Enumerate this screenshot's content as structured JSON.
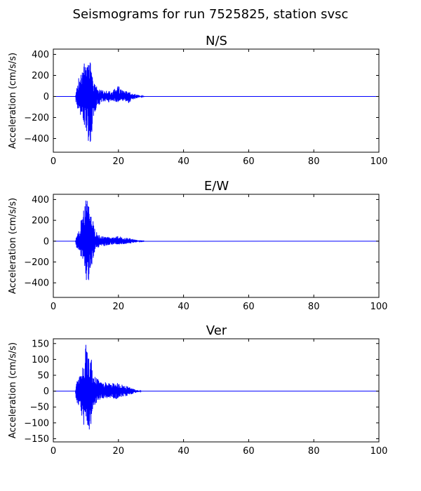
{
  "title": "Seismograms for run 7525825, station svsc",
  "colors": {
    "trace": "#0000ff",
    "axes": "#000000",
    "background": "#ffffff"
  },
  "chart_data": [
    {
      "type": "line",
      "title": "N/S",
      "xlabel": "",
      "ylabel": "Acceleration (cm/s/s)",
      "xlim": [
        0,
        100
      ],
      "ylim": [
        -530,
        450
      ],
      "xticks": [
        0,
        20,
        40,
        60,
        80,
        100
      ],
      "yticks": [
        400,
        200,
        0,
        -200,
        -400
      ],
      "grid": false,
      "series": [
        {
          "envelope": [
            [
              0,
              0,
              0
            ],
            [
              6.8,
              1,
              -1
            ],
            [
              7,
              60,
              -80
            ],
            [
              7.5,
              140,
              -120
            ],
            [
              8,
              210,
              -170
            ],
            [
              8.5,
              230,
              -200
            ],
            [
              9,
              300,
              -260
            ],
            [
              9.5,
              320,
              -280
            ],
            [
              10,
              350,
              -330
            ],
            [
              10.5,
              300,
              -420
            ],
            [
              11,
              330,
              -480
            ],
            [
              11.5,
              370,
              -470
            ],
            [
              12,
              200,
              -300
            ],
            [
              12.5,
              150,
              -190
            ],
            [
              13,
              110,
              -130
            ],
            [
              14,
              80,
              -90
            ],
            [
              15,
              60,
              -60
            ],
            [
              16,
              50,
              -50
            ],
            [
              17,
              60,
              -55
            ],
            [
              18,
              40,
              -40
            ],
            [
              19,
              80,
              -50
            ],
            [
              20,
              100,
              -60
            ],
            [
              21,
              60,
              -60
            ],
            [
              22,
              50,
              -50
            ],
            [
              23,
              55,
              -70
            ],
            [
              24,
              40,
              -40
            ],
            [
              25,
              25,
              -25
            ],
            [
              26,
              15,
              -12
            ],
            [
              27,
              4,
              -4
            ],
            [
              28,
              1,
              -1
            ],
            [
              100,
              0,
              0
            ]
          ]
        }
      ]
    },
    {
      "type": "line",
      "title": "E/W",
      "xlabel": "",
      "ylabel": "Acceleration (cm/s/s)",
      "xlim": [
        0,
        100
      ],
      "ylim": [
        -540,
        450
      ],
      "xticks": [
        0,
        20,
        40,
        60,
        80,
        100
      ],
      "yticks": [
        400,
        200,
        0,
        -200,
        -400
      ],
      "grid": false,
      "series": [
        {
          "envelope": [
            [
              0,
              0,
              0
            ],
            [
              6.8,
              1,
              -1
            ],
            [
              7,
              40,
              -60
            ],
            [
              7.5,
              80,
              -70
            ],
            [
              8,
              110,
              -90
            ],
            [
              8.5,
              200,
              -150
            ],
            [
              9,
              250,
              -200
            ],
            [
              9.5,
              330,
              -350
            ],
            [
              10,
              410,
              -380
            ],
            [
              10.5,
              390,
              -470
            ],
            [
              11,
              330,
              -350
            ],
            [
              11.5,
              280,
              -300
            ],
            [
              12,
              250,
              -280
            ],
            [
              12.5,
              140,
              -120
            ],
            [
              13,
              100,
              -90
            ],
            [
              14,
              60,
              -60
            ],
            [
              15,
              50,
              -50
            ],
            [
              16,
              45,
              -45
            ],
            [
              17,
              40,
              -40
            ],
            [
              18,
              35,
              -35
            ],
            [
              19,
              40,
              -30
            ],
            [
              20,
              55,
              -35
            ],
            [
              21,
              40,
              -30
            ],
            [
              22,
              30,
              -30
            ],
            [
              23,
              35,
              -25
            ],
            [
              24,
              25,
              -20
            ],
            [
              25,
              15,
              -15
            ],
            [
              26,
              8,
              -6
            ],
            [
              27,
              3,
              -3
            ],
            [
              28,
              1,
              -1
            ],
            [
              100,
              0,
              0
            ]
          ]
        }
      ]
    },
    {
      "type": "line",
      "title": "Ver",
      "xlabel": "",
      "ylabel": "Acceleration (cm/s/s)",
      "xlim": [
        0,
        100
      ],
      "ylim": [
        -160,
        165
      ],
      "xticks": [
        0,
        20,
        40,
        60,
        80,
        100
      ],
      "yticks": [
        150,
        100,
        50,
        0,
        -50,
        -100,
        -150
      ],
      "grid": false,
      "series": [
        {
          "envelope": [
            [
              0,
              0,
              0
            ],
            [
              6.8,
              1,
              -1
            ],
            [
              7,
              20,
              -30
            ],
            [
              7.5,
              40,
              -45
            ],
            [
              8,
              55,
              -60
            ],
            [
              8.5,
              50,
              -70
            ],
            [
              9,
              80,
              -90
            ],
            [
              9.5,
              90,
              -145
            ],
            [
              10,
              155,
              -130
            ],
            [
              10.5,
              120,
              -140
            ],
            [
              11,
              110,
              -135
            ],
            [
              11.5,
              130,
              -110
            ],
            [
              12,
              75,
              -70
            ],
            [
              12.5,
              50,
              -50
            ],
            [
              13,
              45,
              -40
            ],
            [
              14,
              35,
              -30
            ],
            [
              15,
              25,
              -25
            ],
            [
              16,
              30,
              -28
            ],
            [
              17,
              25,
              -22
            ],
            [
              18,
              25,
              -20
            ],
            [
              19,
              28,
              -25
            ],
            [
              20,
              25,
              -25
            ],
            [
              21,
              22,
              -20
            ],
            [
              22,
              18,
              -18
            ],
            [
              23,
              15,
              -14
            ],
            [
              24,
              10,
              -10
            ],
            [
              25,
              6,
              -6
            ],
            [
              26,
              3,
              -3
            ],
            [
              27,
              1,
              -1
            ],
            [
              28,
              0.5,
              -0.5
            ],
            [
              100,
              0,
              0
            ]
          ]
        }
      ]
    }
  ]
}
